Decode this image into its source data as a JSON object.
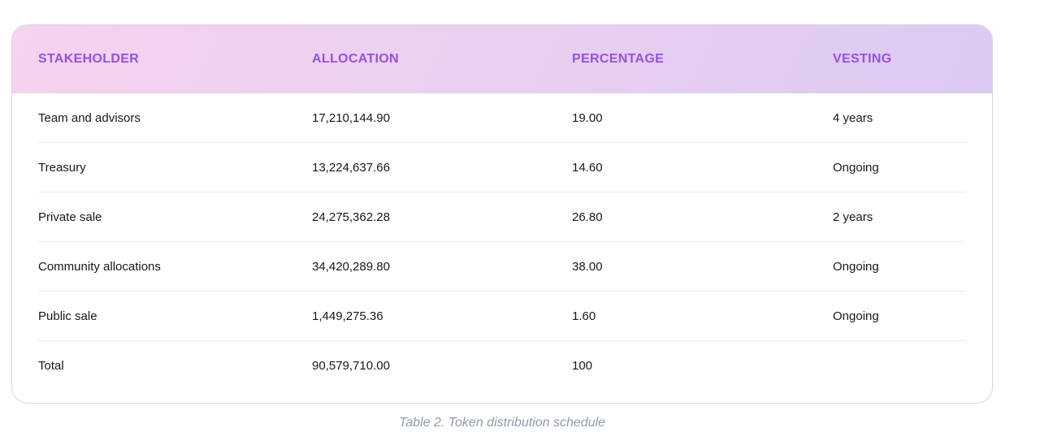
{
  "table": {
    "columns": [
      {
        "label": "STAKEHOLDER"
      },
      {
        "label": "ALLOCATION"
      },
      {
        "label": "PERCENTAGE"
      },
      {
        "label": "VESTING"
      }
    ],
    "rows": [
      {
        "stakeholder": "Team and advisors",
        "allocation": "17,210,144.90",
        "percentage": "19.00",
        "vesting": "4 years"
      },
      {
        "stakeholder": "Treasury",
        "allocation": "13,224,637.66",
        "percentage": "14.60",
        "vesting": "Ongoing"
      },
      {
        "stakeholder": "Private sale",
        "allocation": "24,275,362.28",
        "percentage": "26.80",
        "vesting": "2 years"
      },
      {
        "stakeholder": "Community allocations",
        "allocation": "34,420,289.80",
        "percentage": "38.00",
        "vesting": "Ongoing"
      },
      {
        "stakeholder": "Public sale",
        "allocation": "1,449,275.36",
        "percentage": "1.60",
        "vesting": "Ongoing"
      },
      {
        "stakeholder": "Total",
        "allocation": "90,579,710.00",
        "percentage": "100",
        "vesting": ""
      }
    ]
  },
  "caption": "Table 2. Token distribution schedule",
  "colors": {
    "header_gradient_start": "#f6d3ee",
    "header_gradient_mid": "#e9d0f0",
    "header_gradient_end": "#dcc9f2",
    "header_text": "#9550e6",
    "body_text": "#17181a",
    "divider": "#ebebeb",
    "card_border": "#d5d5d5",
    "caption_text": "#8d99ac"
  }
}
